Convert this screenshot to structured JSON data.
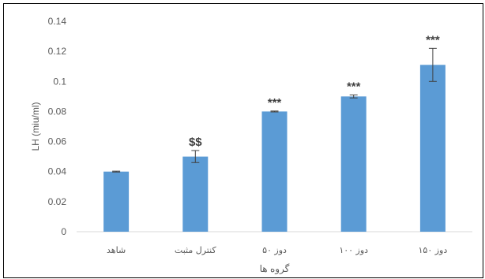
{
  "chart_data": {
    "type": "bar",
    "title": "",
    "xlabel": "گروه ها",
    "ylabel": "LH (miu/ml)",
    "ylim": [
      0,
      0.14
    ],
    "yticks": [
      "0",
      "0.02",
      "0.04",
      "0.06",
      "0.08",
      "0.1",
      "0.12",
      "0.14"
    ],
    "categories": [
      "شاهد",
      "کنترل مثبت",
      "دوز ۵۰",
      "دوز ۱۰۰",
      "دوز ۱۵۰"
    ],
    "values": [
      0.04,
      0.05,
      0.08,
      0.09,
      0.111
    ],
    "errors": [
      0.0003,
      0.004,
      0.0003,
      0.001,
      0.011
    ],
    "significance": [
      "",
      "$$",
      "***",
      "***",
      "***"
    ],
    "grid": false,
    "legend": "none",
    "bar_color": "#5b9bd5",
    "error_color": "#404040"
  }
}
